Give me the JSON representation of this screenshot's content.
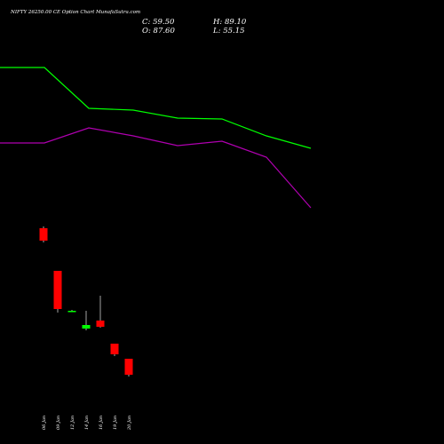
{
  "header": {
    "title": "NIFTY 26250.00  CE Option  Chart MunafaSutra.com",
    "close_label": "C: 59.50",
    "open_label": "O: 87.60",
    "high_label": "H: 89.10",
    "low_label": "L: 55.15"
  },
  "colors": {
    "background": "#000000",
    "up_candle": "#00ff00",
    "down_candle": "#ff0000",
    "ma_green": "#00ff00",
    "ma_magenta": "#b000b0",
    "text": "#ffffff"
  },
  "chart_data": {
    "type": "candlestick",
    "title": "NIFTY 26250.00  CE Option  Chart MunafaSutra.com",
    "grid": false,
    "ylim": [
      0,
      500
    ],
    "categories": [
      "06 Jan",
      "09 Jan",
      "12 Jan",
      "14 Jan",
      "16 Jan",
      "19 Jan",
      "20 Jan"
    ],
    "candles": [
      {
        "date": "06 Jan",
        "open": 243,
        "high": 245,
        "low": 227,
        "close": 229,
        "direction": "down"
      },
      {
        "date": "09 Jan",
        "open": 195,
        "high": 195,
        "low": 148,
        "close": 152,
        "direction": "down"
      },
      {
        "date": "12 Jan",
        "open": 150,
        "high": 151,
        "low": 149,
        "close": 150,
        "direction": "up"
      },
      {
        "date": "14 Jan",
        "open": 130,
        "high": 150,
        "low": 128,
        "close": 134,
        "direction": "up"
      },
      {
        "date": "16 Jan",
        "open": 139,
        "high": 167,
        "low": 131,
        "close": 132,
        "direction": "down"
      },
      {
        "date": "19 Jan",
        "open": 113,
        "high": 113,
        "low": 99,
        "close": 101,
        "direction": "down"
      },
      {
        "date": "20 Jan",
        "open": 96,
        "high": 96,
        "low": 76,
        "close": 78,
        "direction": "down"
      }
    ],
    "series": [
      {
        "type": "line",
        "color": "#00ff00",
        "points": [
          [
            0,
            424
          ],
          [
            50,
            424
          ],
          [
            100,
            378
          ],
          [
            150,
            376
          ],
          [
            200,
            367
          ],
          [
            250,
            366
          ],
          [
            300,
            347
          ],
          [
            350,
            333
          ]
        ]
      },
      {
        "type": "line",
        "color": "#b000b0",
        "points": [
          [
            0,
            339
          ],
          [
            50,
            339
          ],
          [
            100,
            356
          ],
          [
            150,
            347
          ],
          [
            200,
            336
          ],
          [
            250,
            341
          ],
          [
            300,
            323
          ],
          [
            350,
            266
          ]
        ]
      }
    ]
  }
}
